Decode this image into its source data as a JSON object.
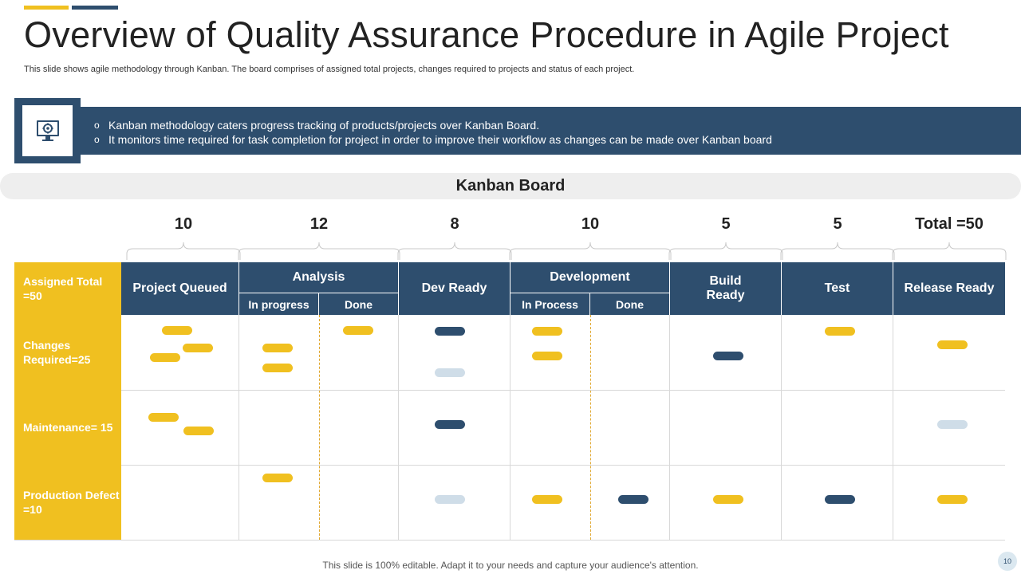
{
  "title": "Overview of Quality Assurance Procedure in Agile Project",
  "subtitle": "This slide shows agile methodology through Kanban. The board comprises of assigned total projects, changes required to projects and status of each project.",
  "banner": {
    "icon": "monitor-gear-icon",
    "bullets": [
      "Kanban methodology caters progress tracking of products/projects over Kanban Board.",
      "It monitors time required for task completion for project in order to improve their workflow as changes can be made over Kanban board"
    ],
    "bullet_marker": "o"
  },
  "board": {
    "title": "Kanban Board",
    "counts": [
      "10",
      "12",
      "8",
      "10",
      "5",
      "5",
      "Total =50"
    ],
    "corner_label": "Assigned Total =50",
    "columns": {
      "project_queued": "Project Queued",
      "analysis": "Analysis",
      "analysis_in_progress": "In progress",
      "analysis_done": "Done",
      "dev_ready": "Dev Ready",
      "development": "Development",
      "development_in_process": "In Process",
      "development_done": "Done",
      "build_ready": "Build Ready",
      "test": "Test",
      "release_ready": "Release Ready"
    },
    "rows": [
      "Changes Required=25",
      "Maintenance= 15",
      "Production Defect =10"
    ],
    "colors": {
      "navy": "#2e4e6e",
      "yellow": "#f0c020",
      "light_blue": "#cfdde8"
    }
  },
  "footer": "This slide is 100% editable. Adapt it to your needs and capture your audience's attention.",
  "page_number": "10"
}
